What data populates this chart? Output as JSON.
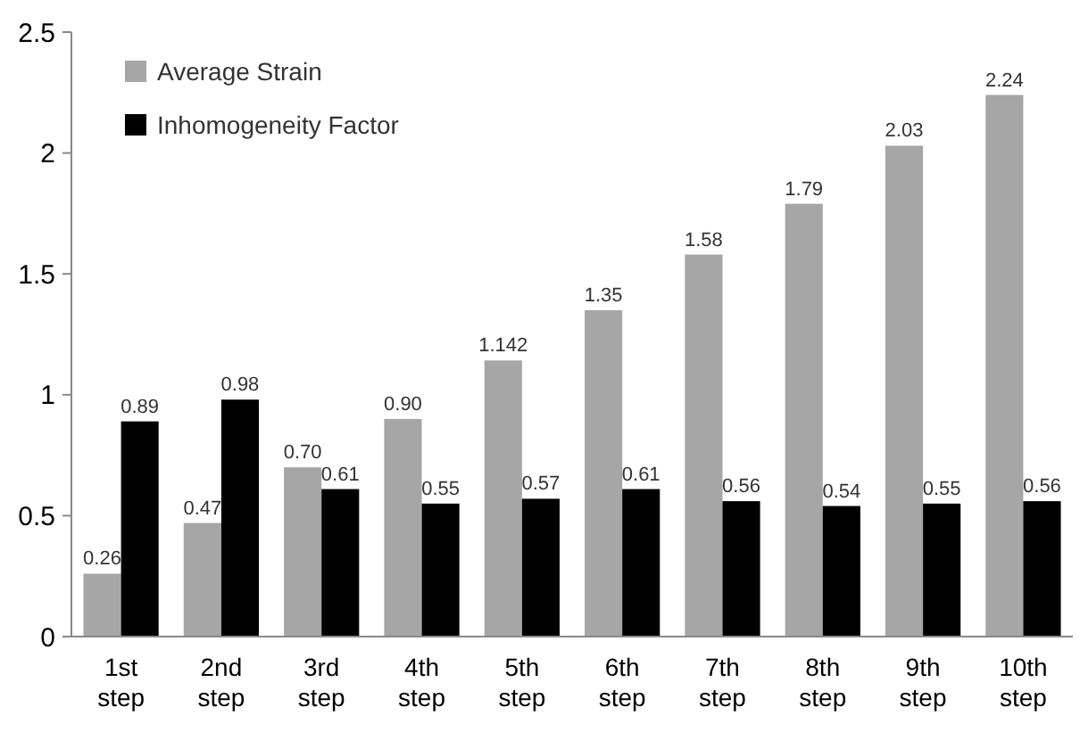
{
  "chart_data": {
    "type": "bar",
    "categories": [
      "1st step",
      "2nd step",
      "3rd step",
      "4th step",
      "5th step",
      "6th step",
      "7th step",
      "8th step",
      "9th step",
      "10th step"
    ],
    "series": [
      {
        "name": "Average Strain",
        "color": "#a6a6a6",
        "values": [
          0.26,
          0.47,
          0.7,
          0.9,
          1.142,
          1.35,
          1.58,
          1.79,
          2.03,
          2.24
        ],
        "value_labels": [
          "0.26",
          "0.47",
          "0.70",
          "0.90",
          "1.142",
          "1.35",
          "1.58",
          "1.79",
          "2.03",
          "2.24"
        ]
      },
      {
        "name": "Inhomogeneity Factor",
        "color": "#000000",
        "values": [
          0.89,
          0.98,
          0.61,
          0.55,
          0.57,
          0.61,
          0.56,
          0.54,
          0.55,
          0.56
        ],
        "value_labels": [
          "0.89",
          "0.98",
          "0.61",
          "0.55",
          "0.57",
          "0.61",
          "0.56",
          "0.54",
          "0.55",
          "0.56"
        ]
      }
    ],
    "ylim": [
      0,
      2.5
    ],
    "yticks": [
      0,
      0.5,
      1,
      1.5,
      2,
      2.5
    ],
    "grid": false,
    "legend": "top left"
  }
}
